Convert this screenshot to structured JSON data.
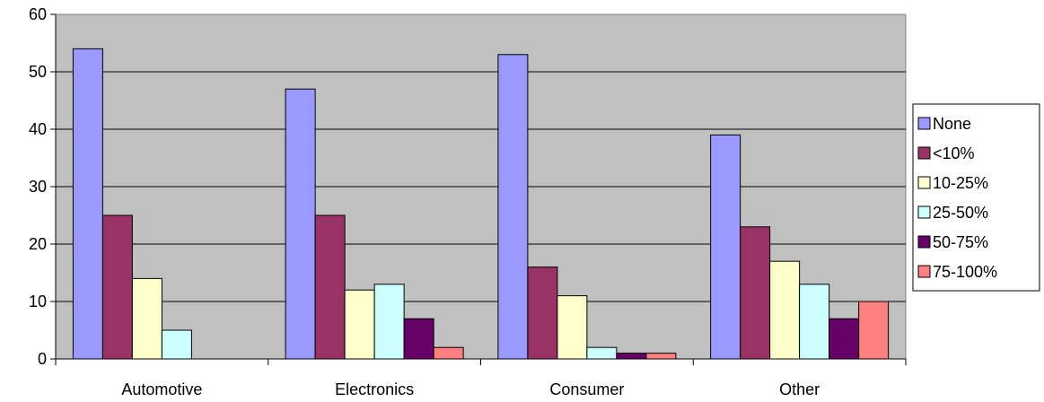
{
  "chart_data": {
    "type": "bar",
    "title": "",
    "xlabel": "",
    "ylabel": "",
    "ylim": [
      0,
      60
    ],
    "yticks": [
      0,
      10,
      20,
      30,
      40,
      50,
      60
    ],
    "grid": true,
    "legend_position": "right",
    "plot_background": "#c0c0c0",
    "categories": [
      "Automotive",
      "Electronics",
      "Consumer",
      "Other"
    ],
    "series": [
      {
        "name": "None",
        "color": "#9999ff",
        "values": [
          54,
          47,
          53,
          39
        ]
      },
      {
        "name": "<10%",
        "color": "#993366",
        "values": [
          25,
          25,
          16,
          23
        ]
      },
      {
        "name": "10-25%",
        "color": "#ffffcc",
        "values": [
          14,
          12,
          11,
          17
        ]
      },
      {
        "name": "25-50%",
        "color": "#ccffff",
        "values": [
          5,
          13,
          2,
          13
        ]
      },
      {
        "name": "50-75%",
        "color": "#660066",
        "values": [
          0,
          7,
          1,
          7
        ]
      },
      {
        "name": "75-100%",
        "color": "#ff8080",
        "values": [
          0,
          2,
          1,
          10
        ]
      }
    ]
  }
}
